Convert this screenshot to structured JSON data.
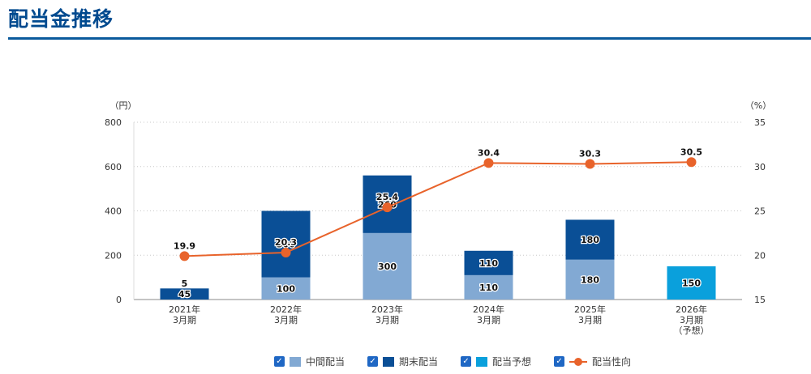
{
  "page": {
    "title": "配当金推移"
  },
  "legend": [
    {
      "label": "中間配当",
      "color": "#82a9d3",
      "kind": "bar"
    },
    {
      "label": "期末配当",
      "color": "#0a4f96",
      "kind": "bar"
    },
    {
      "label": "配当予想",
      "color": "#0aa0dc",
      "kind": "bar"
    },
    {
      "label": "配当性向",
      "color": "#e8632b",
      "kind": "line"
    }
  ],
  "chart_data": {
    "type": "bar",
    "stacked": true,
    "categories": [
      [
        "2021年",
        "3月期"
      ],
      [
        "2022年",
        "3月期"
      ],
      [
        "2023年",
        "3月期"
      ],
      [
        "2024年",
        "3月期"
      ],
      [
        "2025年",
        "3月期"
      ],
      [
        "2026年",
        "3月期",
        "（予想）"
      ]
    ],
    "left_axis": {
      "unit": "（円）",
      "ylim": [
        0,
        800
      ],
      "ticks": [
        0,
        200,
        400,
        600,
        800
      ]
    },
    "right_axis": {
      "unit": "（%）",
      "ylim": [
        15,
        35
      ],
      "ticks": [
        15,
        20,
        25,
        30,
        35
      ]
    },
    "series": [
      {
        "name": "中間配当",
        "axis": "left",
        "color": "#82a9d3",
        "values": [
          0,
          100,
          300,
          110,
          180,
          0
        ],
        "labels": [
          "",
          "100",
          "300",
          "110",
          "180",
          ""
        ]
      },
      {
        "name": "期末配当",
        "axis": "left",
        "color": "#0a4f96",
        "values": [
          50,
          300,
          260,
          110,
          180,
          0
        ],
        "labels": [
          "5\n45",
          "300",
          "260",
          "110",
          "180",
          ""
        ]
      },
      {
        "name": "配当予想",
        "axis": "left",
        "color": "#0aa0dc",
        "values": [
          0,
          0,
          0,
          0,
          0,
          150
        ],
        "labels": [
          "",
          "",
          "",
          "",
          "",
          "150"
        ]
      },
      {
        "name": "配当性向",
        "axis": "right",
        "type": "line",
        "color": "#e8632b",
        "values": [
          19.9,
          20.3,
          25.4,
          30.4,
          30.3,
          30.5
        ],
        "labels": [
          "19.9",
          "20.3",
          "25.4",
          "30.4",
          "30.3",
          "30.5"
        ]
      }
    ],
    "grid": true,
    "legend_position": "bottom"
  }
}
